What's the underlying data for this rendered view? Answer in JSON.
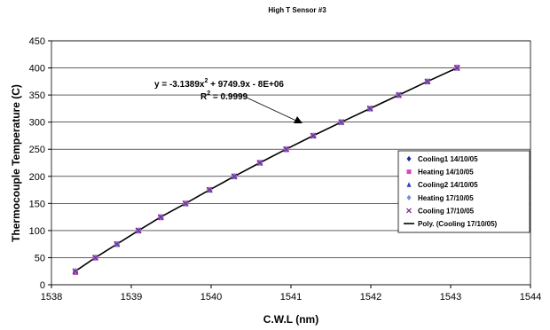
{
  "chart_data": {
    "type": "scatter",
    "title": "High T Sensor #3",
    "xlabel": "C.W.L (nm)",
    "ylabel": "Thermocouple Temperature (C)",
    "xlim": [
      1538,
      1544
    ],
    "ylim": [
      0,
      450
    ],
    "xticks": [
      "1538",
      "1539",
      "1540",
      "1541",
      "1542",
      "1543",
      "1544"
    ],
    "yticks": [
      "0",
      "50",
      "100",
      "150",
      "200",
      "250",
      "300",
      "350",
      "400",
      "450"
    ],
    "grid": "horizontal",
    "legend_position": "right",
    "series": [
      {
        "name": "Cooling1 14/10/05",
        "marker": "diamond",
        "color": "#1f2f8f",
        "x": [
          1538.3,
          1538.55,
          1538.82,
          1539.09,
          1539.37,
          1539.68,
          1539.98,
          1540.29,
          1540.61,
          1540.94,
          1541.28,
          1541.63,
          1541.99,
          1542.35,
          1542.71,
          1543.08
        ],
        "y": [
          25,
          50,
          75,
          100,
          125,
          150,
          175,
          200,
          225,
          250,
          275,
          300,
          325,
          350,
          375,
          400
        ]
      },
      {
        "name": "Heating 14/10/05",
        "marker": "square",
        "color": "#e040c8",
        "x": [
          1538.3,
          1538.55,
          1538.82,
          1539.09,
          1539.37,
          1539.68,
          1539.98,
          1540.29,
          1540.61,
          1540.94,
          1541.28,
          1541.63,
          1541.99,
          1542.35,
          1542.71,
          1543.08
        ],
        "y": [
          23,
          50,
          75,
          100,
          124,
          150,
          175,
          200,
          225,
          250,
          275,
          300,
          325,
          350,
          375,
          401
        ]
      },
      {
        "name": "Cooling2 14/10/05",
        "marker": "triangle",
        "color": "#2040d0",
        "x": [
          1538.3,
          1538.55,
          1538.82,
          1539.09,
          1539.37,
          1539.68,
          1539.98,
          1540.29,
          1540.61,
          1540.94,
          1541.28,
          1541.63,
          1541.99,
          1542.35,
          1542.71,
          1543.08
        ],
        "y": [
          25,
          50,
          75,
          100,
          125,
          150,
          175,
          200,
          225,
          250,
          275,
          300,
          325,
          350,
          375,
          400
        ]
      },
      {
        "name": "Heating 17/10/05",
        "marker": "diamond",
        "color": "#7090d8",
        "x": [
          1538.3,
          1538.55,
          1538.82,
          1539.09,
          1539.37,
          1539.68,
          1539.98,
          1540.29,
          1540.61,
          1540.94,
          1541.28,
          1541.63,
          1541.99,
          1542.35,
          1542.71,
          1543.08
        ],
        "y": [
          25,
          50,
          75,
          100,
          125,
          150,
          175,
          200,
          225,
          250,
          275,
          300,
          325,
          350,
          375,
          400
        ]
      },
      {
        "name": "Cooling 17/10/05",
        "marker": "x",
        "color": "#7a2a8a",
        "x": [
          1538.3,
          1538.55,
          1538.82,
          1539.09,
          1539.37,
          1539.68,
          1539.98,
          1540.29,
          1540.61,
          1540.94,
          1541.28,
          1541.63,
          1541.99,
          1542.35,
          1542.71,
          1543.08
        ],
        "y": [
          25,
          50,
          75,
          100,
          125,
          150,
          175,
          200,
          225,
          250,
          275,
          300,
          325,
          350,
          375,
          400
        ]
      }
    ],
    "fit": {
      "name": "Poly. (Cooling 17/10/05)",
      "color": "#000000",
      "x": [
        1538.3,
        1538.55,
        1538.82,
        1539.09,
        1539.37,
        1539.68,
        1539.98,
        1540.29,
        1540.61,
        1540.94,
        1541.28,
        1541.63,
        1541.99,
        1542.35,
        1542.71,
        1543.08
      ],
      "y": [
        25,
        50,
        75,
        100,
        125,
        150,
        175,
        200,
        225,
        250,
        275,
        300,
        325,
        350,
        375,
        400
      ]
    },
    "annotation": {
      "equation_prefix": "y = -3.1389x",
      "equation_exp": "2",
      "equation_suffix": " + 9749.9x - 8E+06",
      "r2_prefix": "R",
      "r2_exp": "2",
      "r2_suffix": " = 0.9999"
    }
  }
}
